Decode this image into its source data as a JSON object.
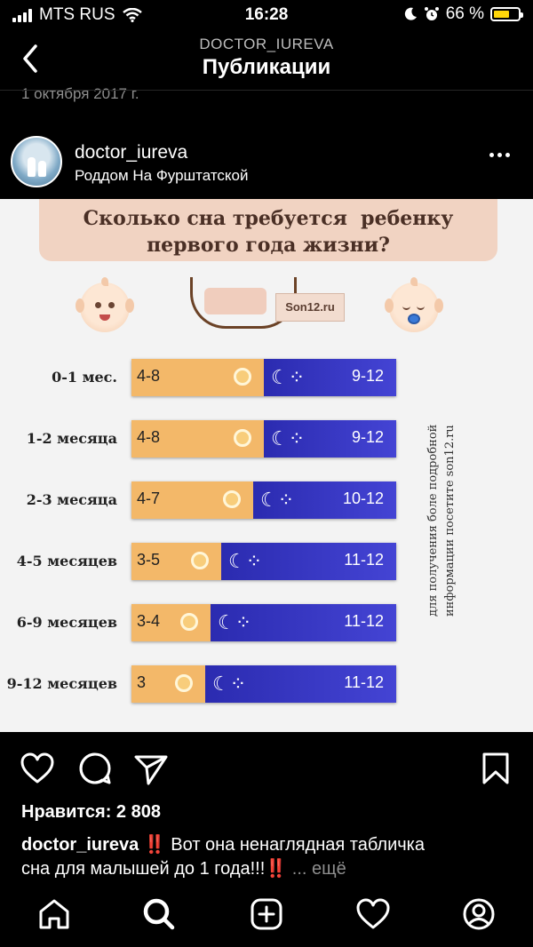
{
  "status_bar": {
    "carrier": "MTS RUS",
    "time": "16:28",
    "battery": "66 %",
    "battery_level": 0.66
  },
  "header": {
    "account": "DOCTOR_IUREVA",
    "title": "Публикации",
    "date_partial": "1 октября 2017 г."
  },
  "post": {
    "username": "doctor_iureva",
    "location": "Роддом На Фурштатской"
  },
  "infographic": {
    "title_line1": "Сколько сна требуется  ребенку",
    "title_line2": "первого года жизни?",
    "logo_text": "Son12.ru",
    "side_note_line1": "для получения боле подробной",
    "side_note_line2": "информации посетите son12.ru",
    "rows": [
      {
        "label": "0-1 мес.",
        "day": "4-8",
        "night": "9-12",
        "day_fraction": 0.5
      },
      {
        "label": "1-2 месяца",
        "day": "4-8",
        "night": "9-12",
        "day_fraction": 0.5
      },
      {
        "label": "2-3 месяца",
        "day": "4-7",
        "night": "10-12",
        "day_fraction": 0.46
      },
      {
        "label": "4-5 месяцев",
        "day": "3-5",
        "night": "11-12",
        "day_fraction": 0.34
      },
      {
        "label": "6-9 месяцев",
        "day": "3-4",
        "night": "11-12",
        "day_fraction": 0.3
      },
      {
        "label": "9-12 месяцев",
        "day": "3",
        "night": "11-12",
        "day_fraction": 0.28
      }
    ]
  },
  "engagement": {
    "likes": "Нравится: 2 808",
    "caption_user": "doctor_iureva",
    "caption_emoji": "‼️",
    "caption_text1": " Вот она ненаглядная табличка",
    "caption_text2": "сна для малышей до 1 года!!!",
    "caption_emoji2": "‼️",
    "caption_more": " ... ещё"
  },
  "icons": {
    "like": "heart-icon",
    "comment": "comment-icon",
    "share": "send-icon",
    "save": "bookmark-icon"
  },
  "colors": {
    "day_bar": "#f3b869",
    "night_bar": "#3a3ac8",
    "banner": "#f1d3c2"
  }
}
